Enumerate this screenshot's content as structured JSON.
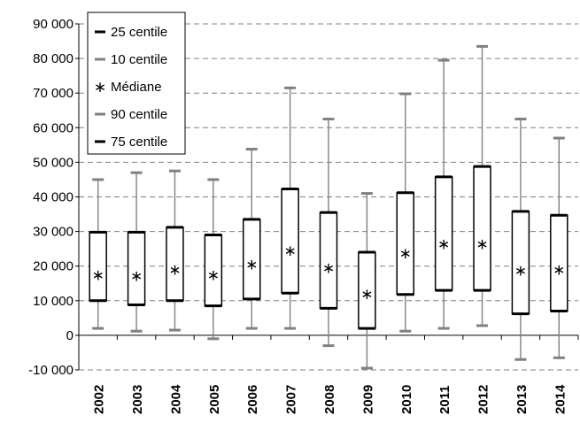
{
  "chart_data": {
    "type": "boxplot",
    "title": "",
    "xlabel": "",
    "ylabel": "",
    "ylim": [
      -10000,
      90000
    ],
    "y_ticks": [
      -10000,
      0,
      10000,
      20000,
      30000,
      40000,
      50000,
      60000,
      70000,
      80000,
      90000
    ],
    "y_tick_labels": [
      "-10 000",
      "0",
      "10 000",
      "20 000",
      "30 000",
      "40 000",
      "50 000",
      "60 000",
      "70 000",
      "80 000",
      "90 000"
    ],
    "grid": true,
    "legend_position": "top-left",
    "categories": [
      "2002",
      "2003",
      "2004",
      "2005",
      "2006",
      "2007",
      "2008",
      "2009",
      "2010",
      "2011",
      "2012",
      "2013",
      "2014"
    ],
    "series": [
      {
        "name": "25 centile",
        "values": [
          10000,
          8800,
          10000,
          8500,
          10500,
          12200,
          7800,
          2000,
          11800,
          13000,
          13000,
          6200,
          7000
        ]
      },
      {
        "name": "10 centile",
        "values": [
          2000,
          1200,
          1500,
          -1000,
          2000,
          2000,
          -3000,
          -9500,
          1200,
          2000,
          2800,
          -7000,
          -6500
        ]
      },
      {
        "name": "Médiane",
        "values": [
          17500,
          17200,
          19000,
          17500,
          20500,
          24500,
          19500,
          12000,
          23800,
          26500,
          26500,
          18800,
          19000
        ]
      },
      {
        "name": "90 centile",
        "values": [
          45000,
          47000,
          47500,
          45000,
          53800,
          71500,
          62500,
          41000,
          69800,
          79500,
          83500,
          62500,
          57000
        ]
      },
      {
        "name": "75 centile",
        "values": [
          29800,
          29800,
          31200,
          29000,
          33500,
          42300,
          35500,
          24000,
          41200,
          45800,
          48800,
          35800,
          34700
        ]
      }
    ],
    "colors": {
      "box": "#000000",
      "whisker": "#808080",
      "grid": "#808080"
    }
  }
}
